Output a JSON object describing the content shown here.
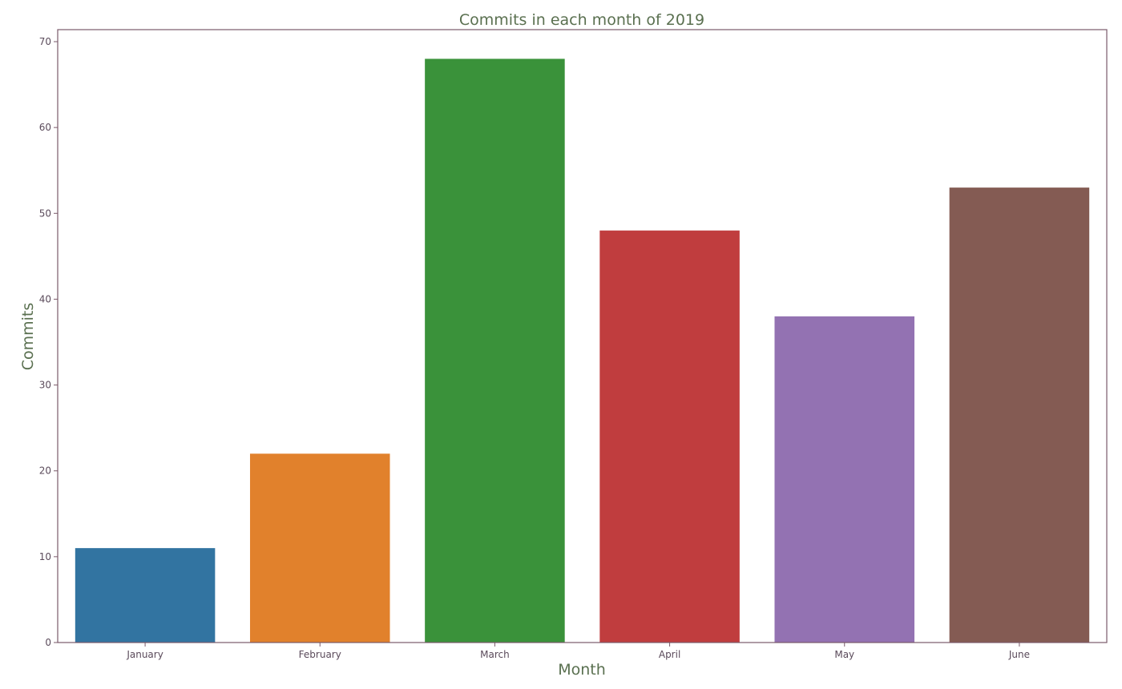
{
  "chart_data": {
    "type": "bar",
    "title": "Commits in each month of 2019",
    "xlabel": "Month",
    "ylabel": "Commits",
    "categories": [
      "January",
      "February",
      "March",
      "April",
      "May",
      "June"
    ],
    "values": [
      11,
      22,
      68,
      48,
      38,
      53
    ],
    "colors": [
      "#3274a1",
      "#e1812c",
      "#3a923a",
      "#c03d3e",
      "#9372b2",
      "#845b53"
    ],
    "ylim": [
      0,
      71.4
    ],
    "yticks": [
      0,
      10,
      20,
      30,
      40,
      50,
      60,
      70
    ],
    "grid": false,
    "legend": "none"
  },
  "style": {
    "title_color": "#5a7050",
    "label_color": "#5a7050",
    "tick_color": "#5a4a5a",
    "spine_color": "#7a5a6a"
  }
}
